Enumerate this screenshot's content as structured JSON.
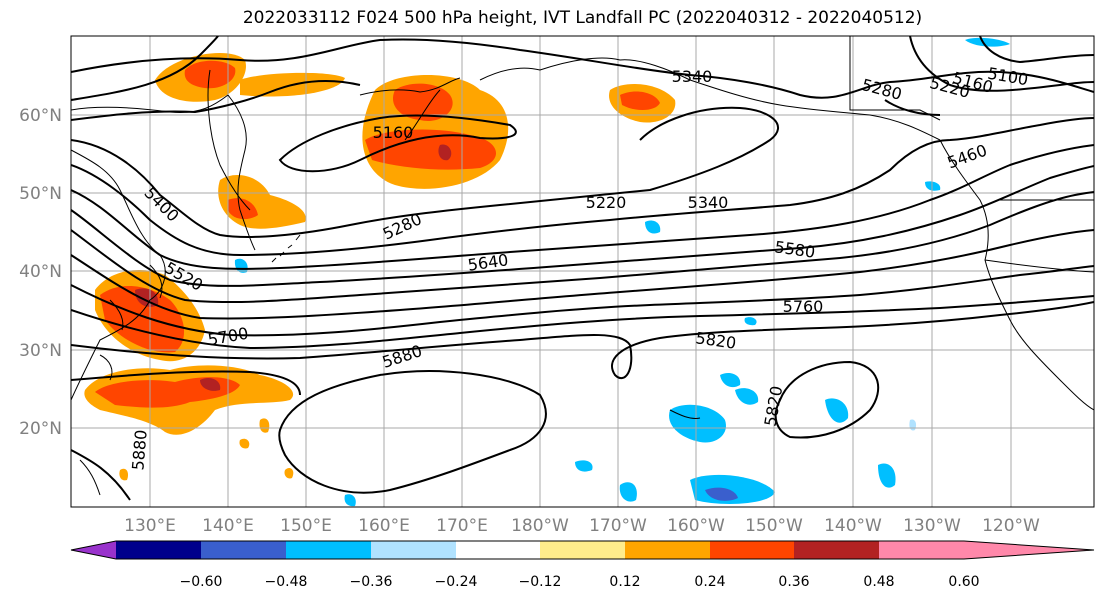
{
  "title": "2022033112 F024 500 hPa height, IVT Landfall PC (2022040312 - 2022040512)",
  "lat_ticks": [
    "60°N",
    "50°N",
    "40°N",
    "30°N",
    "20°N"
  ],
  "lon_ticks": [
    "130°E",
    "140°E",
    "150°E",
    "160°E",
    "170°E",
    "180°W",
    "170°W",
    "160°W",
    "150°W",
    "140°W",
    "130°W",
    "120°W"
  ],
  "colorbar": {
    "ticks": [
      "−0.60",
      "−0.48",
      "−0.36",
      "−0.24",
      "−0.12",
      "0.12",
      "0.24",
      "0.36",
      "0.48",
      "0.60"
    ],
    "colors": [
      "#9932cc",
      "#00008b",
      "#3a5fcd",
      "#00bfff",
      "#b0e2ff",
      "#ffffff",
      "#ffec8b",
      "#ffa500",
      "#ff4500",
      "#b22222",
      "#ff88aa"
    ]
  },
  "contour_labels": [
    {
      "text": "5340"
    },
    {
      "text": "5280"
    },
    {
      "text": "5220"
    },
    {
      "text": "5160"
    },
    {
      "text": "5100"
    },
    {
      "text": "5160"
    },
    {
      "text": "5460"
    },
    {
      "text": "5400"
    },
    {
      "text": "5280"
    },
    {
      "text": "5220"
    },
    {
      "text": "5340"
    },
    {
      "text": "5580"
    },
    {
      "text": "5640"
    },
    {
      "text": "5520"
    },
    {
      "text": "5760"
    },
    {
      "text": "5700"
    },
    {
      "text": "5820"
    },
    {
      "text": "5880"
    },
    {
      "text": "5820"
    },
    {
      "text": "5880"
    }
  ]
}
